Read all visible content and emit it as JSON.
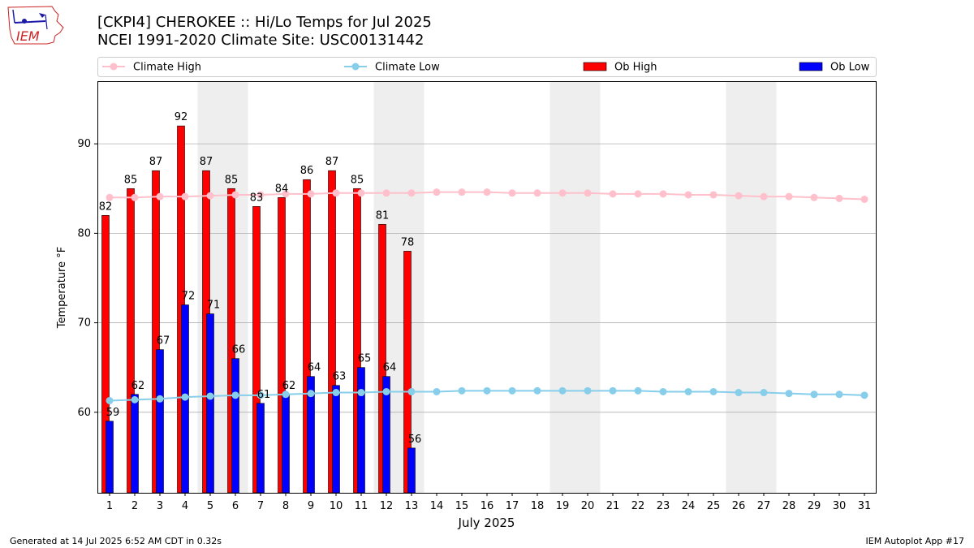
{
  "header": {
    "title_line1": "[CKPI4] CHEROKEE :: Hi/Lo Temps for Jul 2025",
    "title_line2": "NCEI 1991-2020 Climate Site: USC00131442",
    "logo_text": "IEM"
  },
  "footer": {
    "left": "Generated at 14 Jul 2025 6:52 AM CDT in 0.32s",
    "right": "IEM Autoplot App #17"
  },
  "colors": {
    "ob_high": "#ff0000",
    "ob_low": "#0000ff",
    "climate_high": "#ffc0cb",
    "climate_low": "#87ceeb",
    "weekend_shade": "#eeeeee",
    "grid": "#b0b0b0"
  },
  "chart_data": {
    "type": "bar",
    "title": "[CKPI4] CHEROKEE :: Hi/Lo Temps for Jul 2025",
    "subtitle": "NCEI 1991-2020 Climate Site: USC00131442",
    "xlabel": "July 2025",
    "ylabel": "Temperature °F",
    "ylim": [
      51,
      97
    ],
    "yticks": [
      60,
      70,
      80,
      90
    ],
    "grid": "horizontal",
    "legend_position": "top",
    "legend": [
      "Climate High",
      "Climate Low",
      "Ob High",
      "Ob Low"
    ],
    "days": [
      1,
      2,
      3,
      4,
      5,
      6,
      7,
      8,
      9,
      10,
      11,
      12,
      13,
      14,
      15,
      16,
      17,
      18,
      19,
      20,
      21,
      22,
      23,
      24,
      25,
      26,
      27,
      28,
      29,
      30,
      31
    ],
    "shaded_days": [
      [
        5,
        6
      ],
      [
        12,
        13
      ],
      [
        19,
        20
      ],
      [
        26,
        27
      ]
    ],
    "series": [
      {
        "name": "Ob High",
        "kind": "bar",
        "values": [
          82,
          85,
          87,
          92,
          87,
          85,
          83,
          84,
          86,
          87,
          85,
          81,
          78
        ]
      },
      {
        "name": "Ob Low",
        "kind": "bar",
        "values": [
          59,
          62,
          67,
          72,
          71,
          66,
          61,
          62,
          64,
          63,
          65,
          64,
          56
        ]
      },
      {
        "name": "Climate High",
        "kind": "line",
        "values": [
          84.0,
          84.0,
          84.1,
          84.1,
          84.2,
          84.3,
          84.3,
          84.4,
          84.4,
          84.5,
          84.5,
          84.5,
          84.5,
          84.6,
          84.6,
          84.6,
          84.5,
          84.5,
          84.5,
          84.5,
          84.4,
          84.4,
          84.4,
          84.3,
          84.3,
          84.2,
          84.1,
          84.1,
          84.0,
          83.9,
          83.8
        ]
      },
      {
        "name": "Climate Low",
        "kind": "line",
        "values": [
          61.3,
          61.4,
          61.5,
          61.7,
          61.8,
          61.9,
          61.9,
          62.0,
          62.1,
          62.2,
          62.2,
          62.3,
          62.3,
          62.3,
          62.4,
          62.4,
          62.4,
          62.4,
          62.4,
          62.4,
          62.4,
          62.4,
          62.3,
          62.3,
          62.3,
          62.2,
          62.2,
          62.1,
          62.0,
          62.0,
          61.9
        ]
      }
    ]
  }
}
